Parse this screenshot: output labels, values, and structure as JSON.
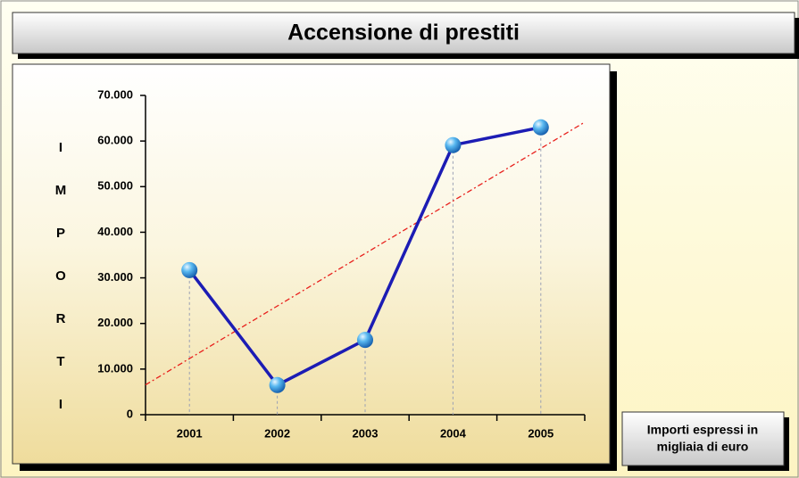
{
  "chart_data": {
    "type": "line",
    "title": "Accensione di prestiti",
    "y_label": "IMPORTI",
    "annotation": [
      "Importi espressi in",
      "migliaia di euro"
    ],
    "categories": [
      "2001",
      "2002",
      "2003",
      "2004",
      "2005"
    ],
    "series": [
      {
        "name": "Importi",
        "color": "#1c1cb4",
        "values": [
          31700,
          6500,
          16400,
          59100,
          63000
        ]
      }
    ],
    "trendline": true,
    "trend_color": "#e8201c",
    "ylim": [
      0,
      70000
    ],
    "yticks": [
      0,
      {
        "value": 10000,
        "label": "10.000"
      },
      {
        "value": 20000,
        "label": "20.000"
      },
      {
        "value": 30000,
        "label": "30.000"
      },
      {
        "value": 40000,
        "label": "40.000"
      },
      {
        "value": 50000,
        "label": "50.000"
      },
      {
        "value": 60000,
        "label": "60.000"
      },
      {
        "value": 70000,
        "label": "70.000"
      }
    ]
  }
}
